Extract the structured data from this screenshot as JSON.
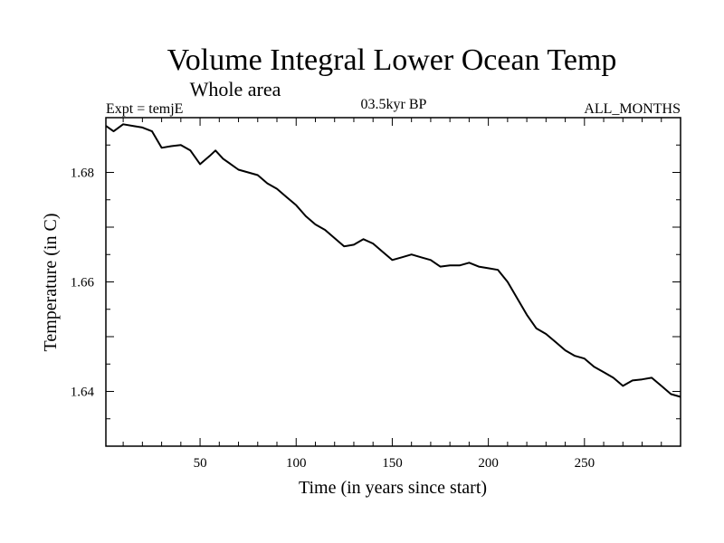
{
  "chart_data": {
    "type": "line",
    "title": "Volume Integral Lower Ocean Temp",
    "subtitle": "Whole area",
    "annotations": {
      "left": "Expt = temjE",
      "center": "03.5kyr BP",
      "right": "ALL_MONTHS"
    },
    "xlabel": "Time (in years since start)",
    "ylabel": "Temperature (in C)",
    "xlim": [
      1,
      300
    ],
    "ylim": [
      1.63,
      1.69
    ],
    "x_ticks": [
      50,
      100,
      150,
      200,
      250
    ],
    "y_ticks": [
      1.64,
      1.66,
      1.68
    ],
    "x_tick_labels": [
      "50",
      "100",
      "150",
      "200",
      "250"
    ],
    "y_tick_labels": [
      "1.64",
      "1.66",
      "1.68"
    ],
    "legend": "none",
    "grid": false,
    "series": [
      {
        "name": "temjE",
        "color": "#000000",
        "x": [
          1,
          5,
          10,
          15,
          20,
          25,
          30,
          35,
          40,
          45,
          50,
          55,
          58,
          62,
          66,
          70,
          75,
          80,
          85,
          90,
          95,
          100,
          105,
          110,
          115,
          120,
          125,
          130,
          135,
          140,
          145,
          150,
          155,
          160,
          165,
          170,
          175,
          180,
          185,
          190,
          195,
          200,
          205,
          210,
          215,
          220,
          225,
          230,
          235,
          240,
          245,
          250,
          255,
          260,
          265,
          270,
          275,
          280,
          285,
          290,
          295,
          300
        ],
        "y": [
          1.6885,
          1.6875,
          1.6888,
          1.6885,
          1.6882,
          1.6875,
          1.6845,
          1.6848,
          1.685,
          1.684,
          1.6815,
          1.683,
          1.684,
          1.6825,
          1.6815,
          1.6805,
          1.68,
          1.6795,
          1.678,
          1.677,
          1.6755,
          1.674,
          1.672,
          1.6705,
          1.6695,
          1.668,
          1.6665,
          1.6668,
          1.6678,
          1.667,
          1.6655,
          1.664,
          1.6645,
          1.665,
          1.6645,
          1.664,
          1.6628,
          1.663,
          1.663,
          1.6635,
          1.6628,
          1.6625,
          1.6622,
          1.66,
          1.657,
          1.654,
          1.6515,
          1.6505,
          1.649,
          1.6475,
          1.6465,
          1.646,
          1.6445,
          1.6435,
          1.6425,
          1.641,
          1.642,
          1.6422,
          1.6425,
          1.641,
          1.6395,
          1.639
        ]
      }
    ]
  }
}
